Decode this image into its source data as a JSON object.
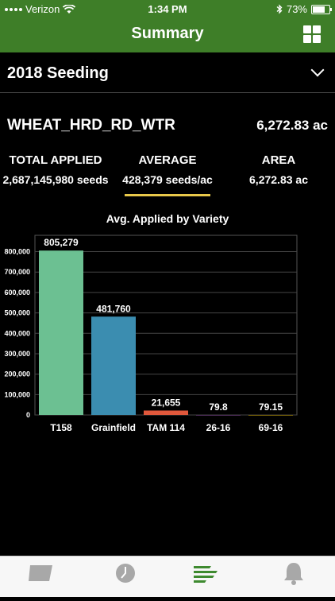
{
  "status_bar": {
    "carrier": "Verizon",
    "time": "1:34 PM",
    "battery": "73%",
    "battery_level": 0.73
  },
  "header": {
    "title": "Summary",
    "grid_icon": "grid-icon"
  },
  "section": {
    "title": "2018 Seeding",
    "toggle_icon": "chevron-down-icon"
  },
  "crop": {
    "name": "WHEAT_HRD_RD_WTR",
    "area": "6,272.83 ac"
  },
  "stats": {
    "total_label": "TOTAL APPLIED",
    "total_value": "2,687,145,980 seeds",
    "average_label": "AVERAGE",
    "average_value": "428,379 seeds/ac",
    "area_label": "AREA",
    "area_value": "6,272.83 ac"
  },
  "chart_data": {
    "type": "bar",
    "title": "Avg. Applied by Variety",
    "categories": [
      "T158",
      "Grainfield",
      "TAM 114",
      "26-16",
      "69-16"
    ],
    "values": [
      805279,
      481760,
      21655,
      79.8,
      79.15
    ],
    "data_labels": [
      "805,279",
      "481,760",
      "21,655",
      "79.8",
      "79.15"
    ],
    "colors": [
      "#6cc092",
      "#3b8db0",
      "#e0583c",
      "#9b59b6",
      "#f1c40f"
    ],
    "yticks": [
      0,
      100000,
      200000,
      300000,
      400000,
      500000,
      600000,
      700000,
      800000
    ],
    "ytick_labels": [
      "0",
      "100,000",
      "200,000",
      "300,000",
      "400,000",
      "500,000",
      "600,000",
      "700,000",
      "800,000"
    ],
    "ylim": [
      0,
      880000
    ],
    "grid": true
  },
  "tabs": [
    {
      "name": "map",
      "icon": "map-icon"
    },
    {
      "name": "history",
      "icon": "clock-icon"
    },
    {
      "name": "summary",
      "icon": "bars-icon",
      "active": true
    },
    {
      "name": "alerts",
      "icon": "bell-icon"
    }
  ],
  "theme": {
    "brand": "#3e7e28",
    "highlight": "#e8c84a",
    "tab_active": "#3e8a2f",
    "tab_inactive": "#a8a8a8"
  }
}
